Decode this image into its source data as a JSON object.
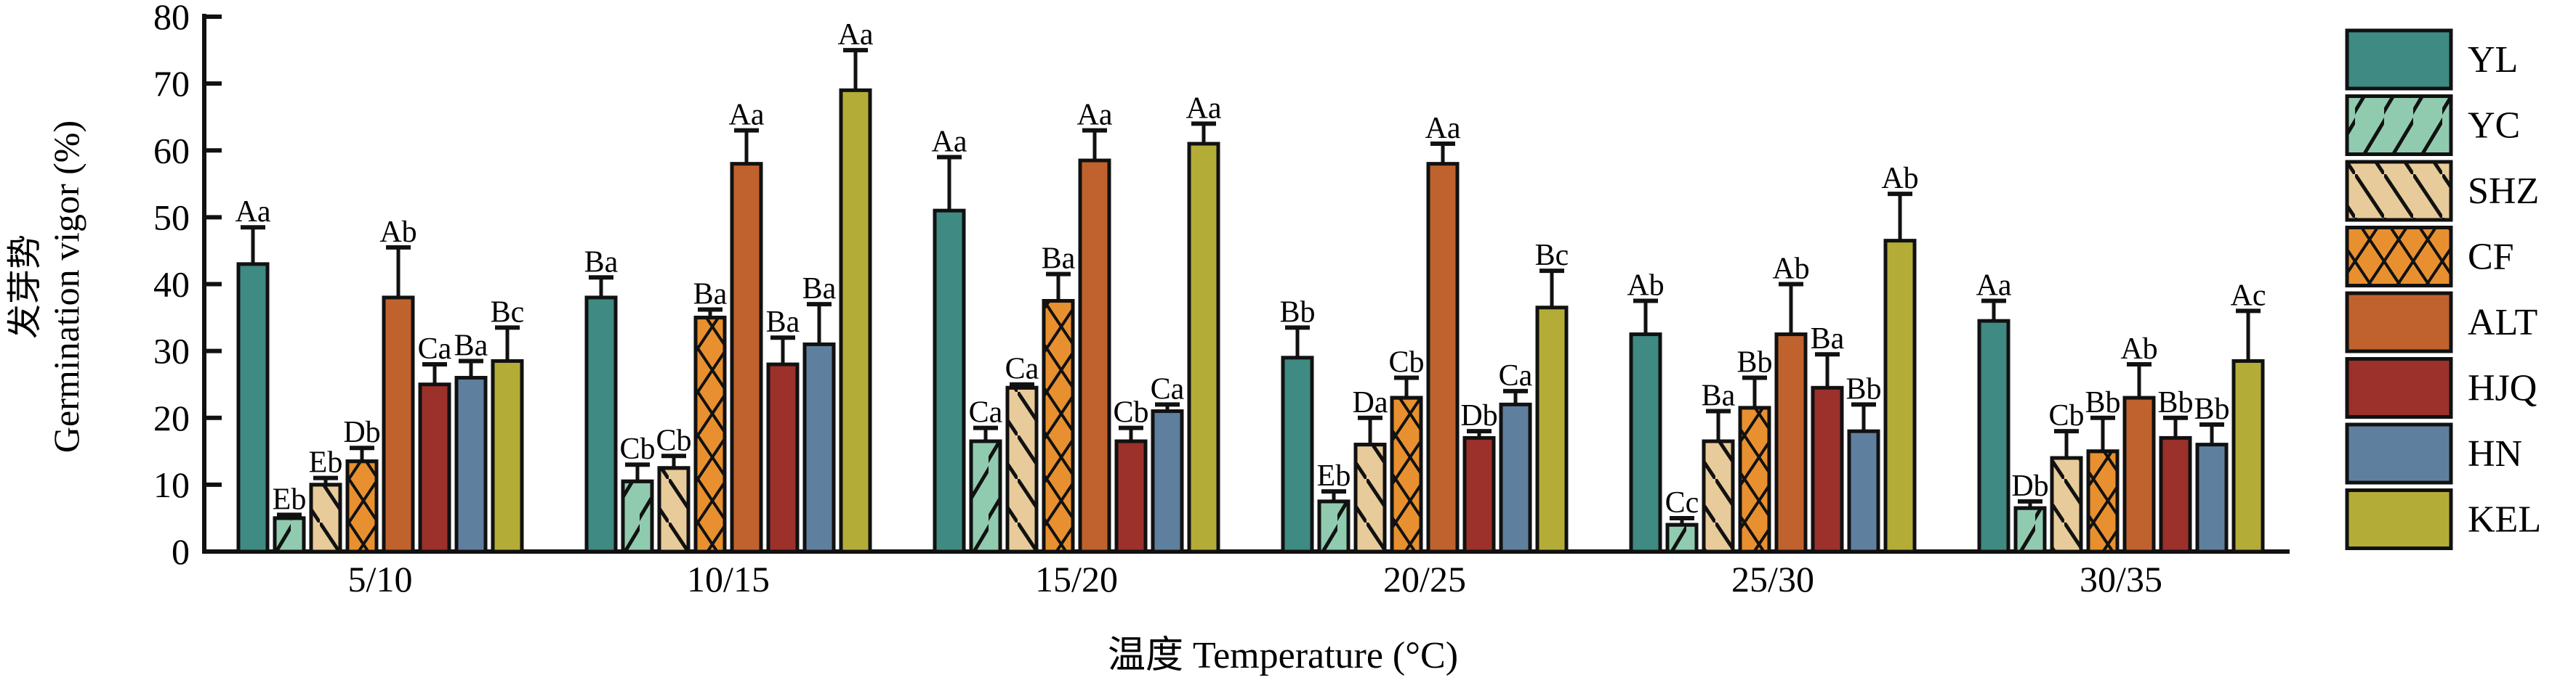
{
  "chart_data": {
    "type": "bar",
    "title": "",
    "xlabel": "温度 Temperature (°C)",
    "ylabel_cn": "发芽势",
    "ylabel": "Germination vigor (%)",
    "ylim": [
      0,
      80
    ],
    "yticks": [
      0,
      10,
      20,
      30,
      40,
      50,
      60,
      70,
      80
    ],
    "legend_position": "right",
    "categories": [
      "5/10",
      "10/15",
      "15/20",
      "20/25",
      "25/30",
      "30/35"
    ],
    "series": [
      {
        "name": "YL",
        "color": "#3f8a82",
        "pattern": "none",
        "values": [
          43,
          38,
          51,
          29,
          32.5,
          34.5
        ],
        "errors": [
          5.5,
          3,
          8,
          4.5,
          5,
          3
        ],
        "labels": [
          "Aa",
          "Ba",
          "Aa",
          "Bb",
          "Ab",
          "Aa"
        ]
      },
      {
        "name": "YC",
        "color": "#90cbb0",
        "pattern": "slash",
        "values": [
          5,
          10.5,
          16.5,
          7.5,
          4,
          6.5
        ],
        "errors": [
          0.5,
          2.5,
          2,
          1.5,
          1,
          1
        ],
        "labels": [
          "Eb",
          "Cb",
          "Ca",
          "Eb",
          "Cc",
          "Db"
        ]
      },
      {
        "name": "SHZ",
        "color": "#e8cb9a",
        "pattern": "backslash",
        "values": [
          10,
          12.5,
          24.5,
          16,
          16.5,
          14
        ],
        "errors": [
          1,
          1.8,
          0.5,
          4,
          4.5,
          4
        ],
        "labels": [
          "Eb",
          "Cb",
          "Ca",
          "Da",
          "Ba",
          "Cb"
        ]
      },
      {
        "name": "CF",
        "color": "#e8902f",
        "pattern": "cross",
        "values": [
          13.5,
          35,
          37.5,
          23,
          21.5,
          15
        ],
        "errors": [
          2,
          1.2,
          4,
          3,
          4.5,
          5
        ],
        "labels": [
          "Db",
          "Ba",
          "Ba",
          "Cb",
          "Bb",
          "Bb"
        ]
      },
      {
        "name": "ALT",
        "color": "#c0622d",
        "pattern": "none",
        "values": [
          38,
          58,
          58.5,
          58,
          32.5,
          23
        ],
        "errors": [
          7.5,
          5,
          4.5,
          3,
          7.5,
          5
        ],
        "labels": [
          "Ab",
          "Aa",
          "Aa",
          "Aa",
          "Ab",
          "Ab"
        ]
      },
      {
        "name": "HJQ",
        "color": "#9c302a",
        "pattern": "none",
        "values": [
          25,
          28,
          16.5,
          17,
          24.5,
          17
        ],
        "errors": [
          3,
          4,
          2,
          1,
          5,
          3
        ],
        "labels": [
          "Ca",
          "Ba",
          "Cb",
          "Db",
          "Ba",
          "Bb"
        ]
      },
      {
        "name": "HN",
        "color": "#5f7f9f",
        "pattern": "none",
        "values": [
          26,
          31,
          21,
          22,
          18,
          16
        ],
        "errors": [
          2.5,
          6,
          1,
          2,
          4,
          3
        ],
        "labels": [
          "Ba",
          "Ba",
          "Ca",
          "Ca",
          "Bb",
          "Bb"
        ]
      },
      {
        "name": "KEL",
        "color": "#b3ad38",
        "pattern": "none",
        "values": [
          28.5,
          69,
          61,
          36.5,
          46.5,
          28.5
        ],
        "errors": [
          5,
          6,
          3,
          5.5,
          7,
          7.5
        ],
        "labels": [
          "Bc",
          "Aa",
          "Aa",
          "Bc",
          "Ab",
          "Ac"
        ]
      }
    ]
  }
}
